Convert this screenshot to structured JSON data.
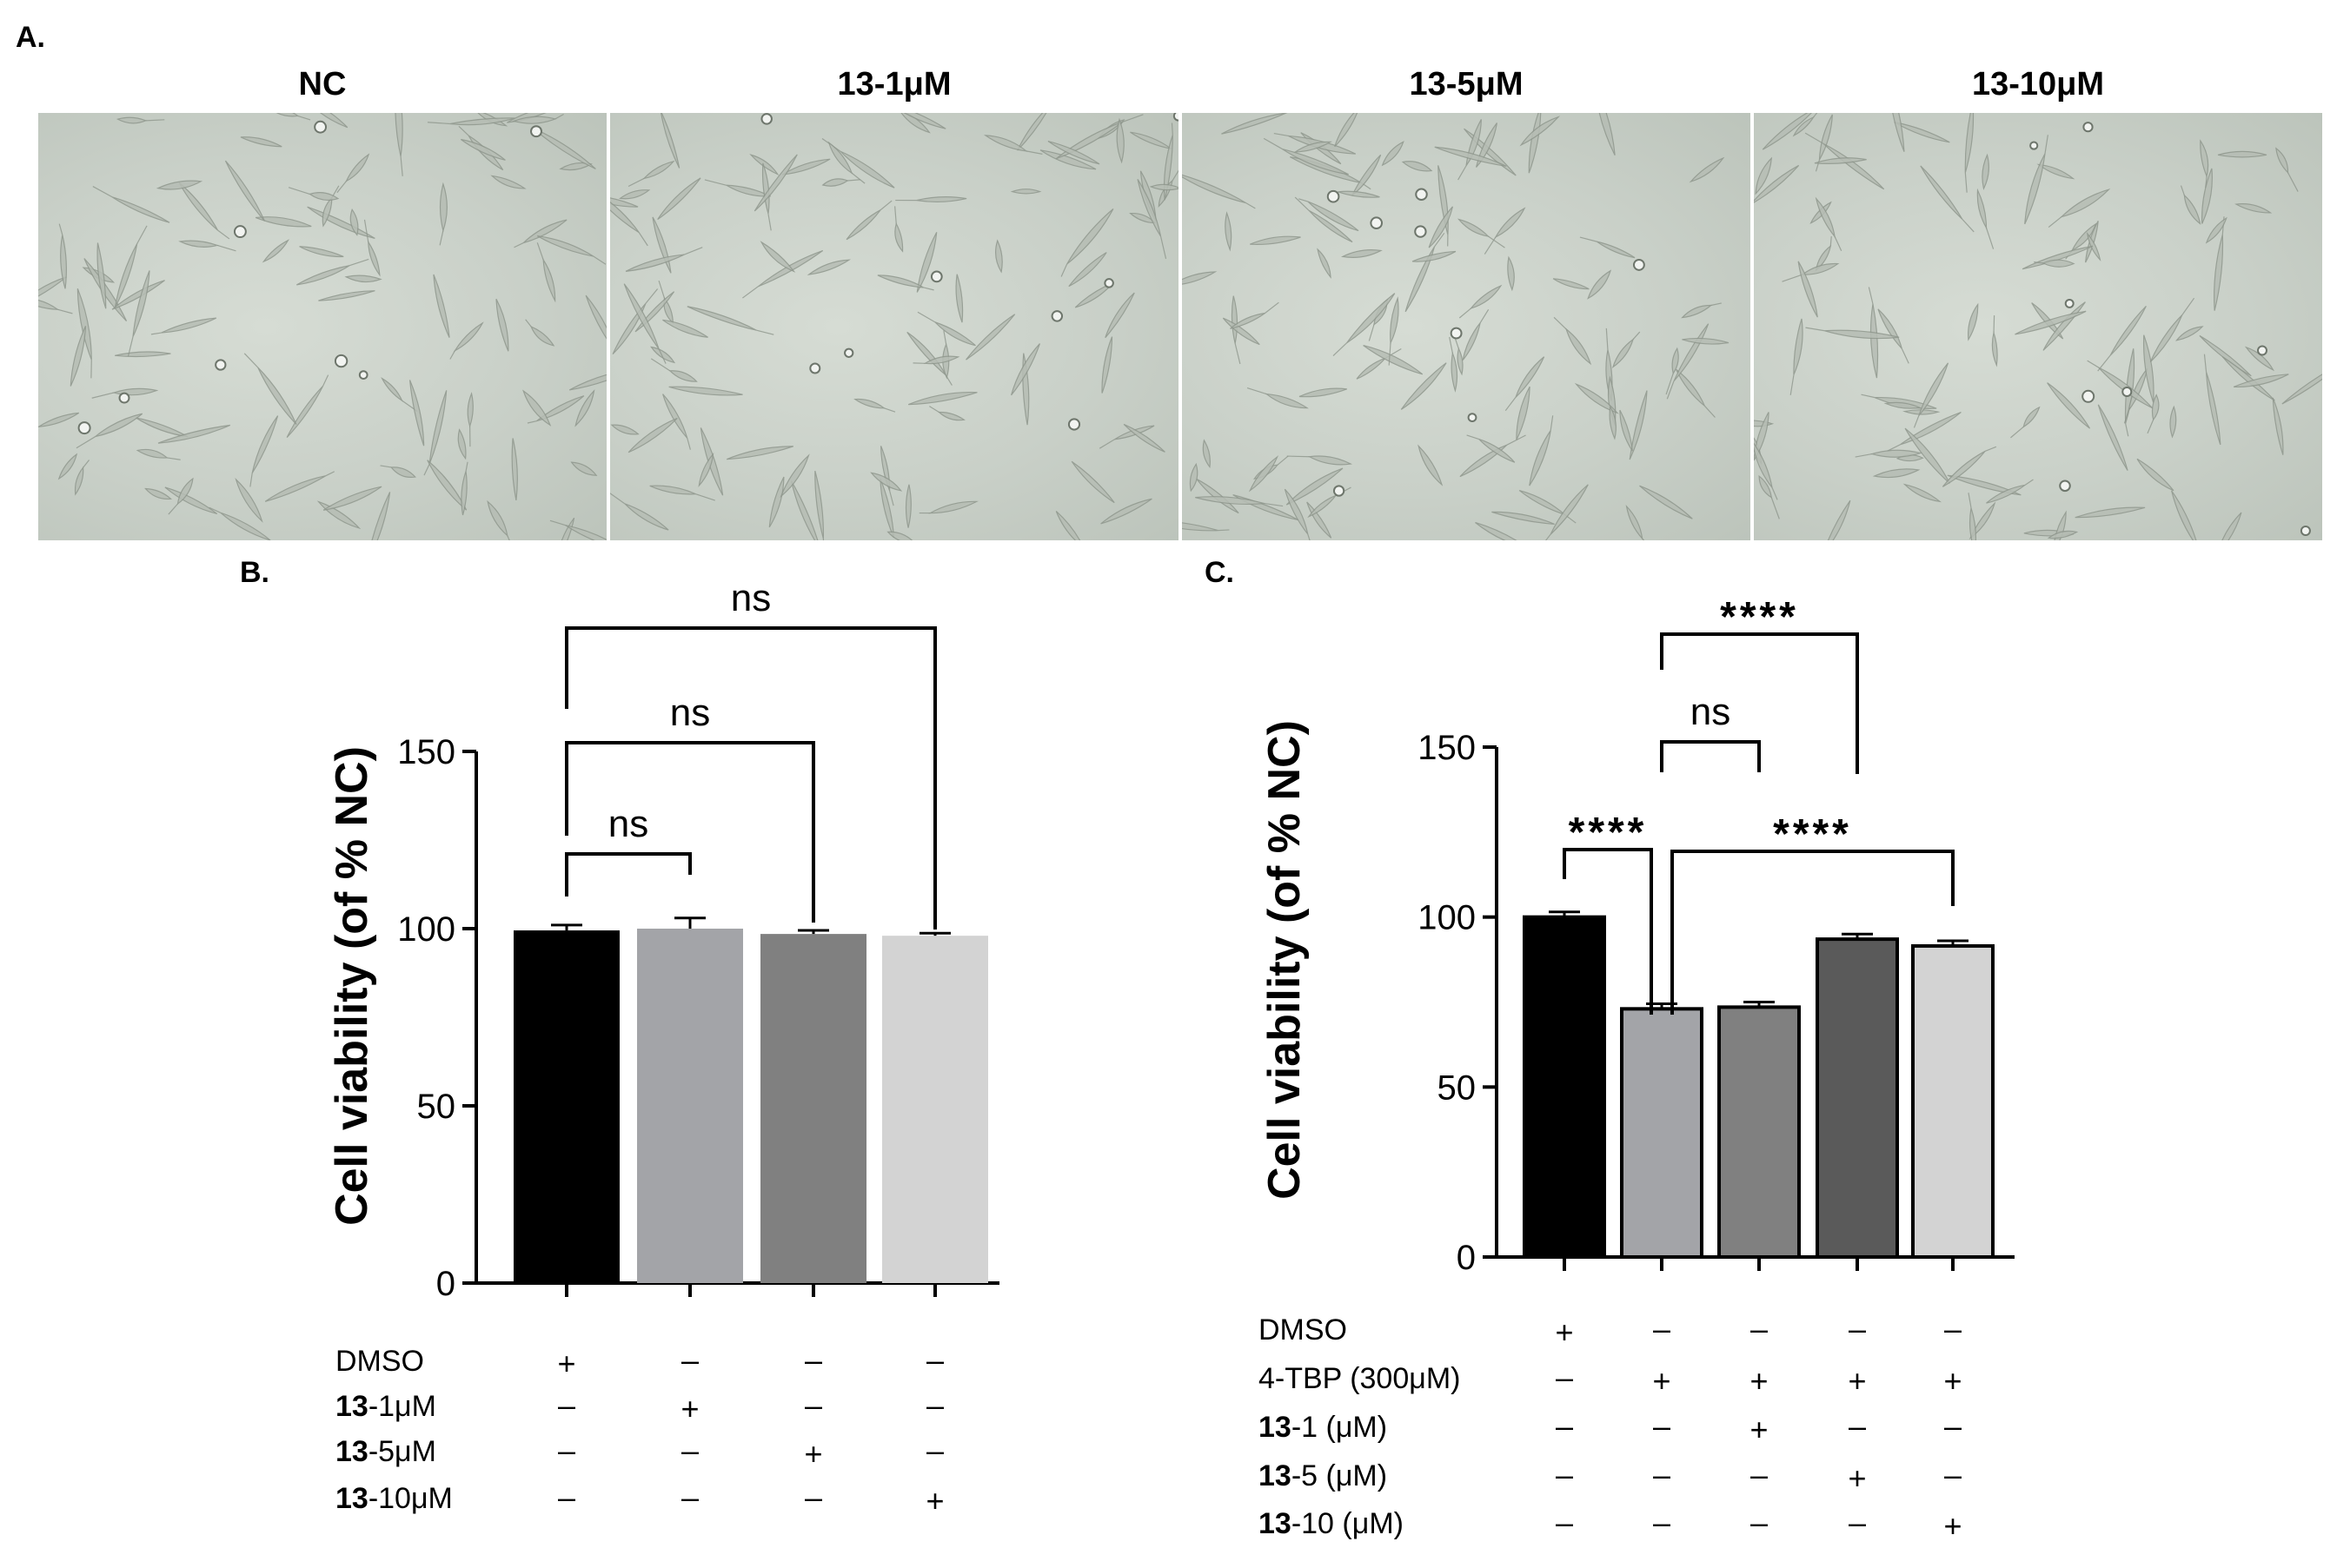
{
  "panels": {
    "a_label": "A.",
    "b_label": "B.",
    "c_label": "C."
  },
  "micrographs": [
    {
      "title": "NC"
    },
    {
      "title": "13-1μM"
    },
    {
      "title": "13-5μM"
    },
    {
      "title": "13-10μM"
    }
  ],
  "chart_data": [
    {
      "type": "bar",
      "panel": "B.",
      "ylabel": "Cell viability (of % NC)",
      "ylim": [
        0,
        150
      ],
      "yticks": [
        0,
        50,
        100,
        150
      ],
      "categories": [
        "DMSO",
        "13-1μM",
        "13-5μM",
        "13-10μM"
      ],
      "values": [
        99.5,
        100,
        98.5,
        98
      ],
      "errors": [
        1.5,
        3,
        1,
        0.7
      ],
      "colors": [
        "#000000",
        "#a3a4a8",
        "#808080",
        "#d3d3d3"
      ],
      "significance": [
        {
          "from": 0,
          "to": 1,
          "label": "ns"
        },
        {
          "from": 0,
          "to": 2,
          "label": "ns"
        },
        {
          "from": 0,
          "to": 3,
          "label": "ns"
        }
      ],
      "treatment_rows": [
        {
          "name_bold": "",
          "name": "DMSO",
          "marks": [
            "+",
            "–",
            "–",
            "–"
          ]
        },
        {
          "name_bold": "13",
          "name": "-1μM",
          "marks": [
            "–",
            "+",
            "–",
            "–"
          ]
        },
        {
          "name_bold": "13",
          "name": "-5μM",
          "marks": [
            "–",
            "–",
            "+",
            "–"
          ]
        },
        {
          "name_bold": "13",
          "name": "-10μM",
          "marks": [
            "–",
            "–",
            "–",
            "+"
          ]
        }
      ]
    },
    {
      "type": "bar",
      "panel": "C.",
      "ylabel": "Cell viability (of % NC)",
      "ylim": [
        0,
        150
      ],
      "yticks": [
        0,
        50,
        100,
        150
      ],
      "categories": [
        "DMSO",
        "4-TBP",
        "4-TBP + 13-1",
        "4-TBP + 13-5",
        "4-TBP + 13-10"
      ],
      "values": [
        100,
        73,
        73.5,
        93.5,
        91.5
      ],
      "errors": [
        1.5,
        1.5,
        1.5,
        1.5,
        1.5
      ],
      "colors": [
        "#000000",
        "#a3a4a8",
        "#808080",
        "#5a5a5a",
        "#d3d3d3"
      ],
      "significance": [
        {
          "from": 0,
          "to": 1,
          "label": "****"
        },
        {
          "from": 1,
          "to": 4,
          "label": "****"
        },
        {
          "from": 1,
          "to": 2,
          "label": "ns"
        },
        {
          "from": 1,
          "to": 3,
          "label": "****"
        }
      ],
      "treatment_rows": [
        {
          "name_bold": "",
          "name": "DMSO",
          "marks": [
            "+",
            "–",
            "–",
            "–",
            "–"
          ]
        },
        {
          "name_bold": "",
          "name": "4-TBP (300μM)",
          "marks": [
            "–",
            "+",
            "+",
            "+",
            "+"
          ]
        },
        {
          "name_bold": "13",
          "name": "-1  (μM)",
          "marks": [
            "–",
            "–",
            "+",
            "–",
            "–"
          ]
        },
        {
          "name_bold": "13",
          "name": "-5  (μM)",
          "marks": [
            "–",
            "–",
            "–",
            "+",
            "–"
          ]
        },
        {
          "name_bold": "13",
          "name": "-10 (μM)",
          "marks": [
            "–",
            "–",
            "–",
            "–",
            "+"
          ]
        }
      ]
    }
  ]
}
